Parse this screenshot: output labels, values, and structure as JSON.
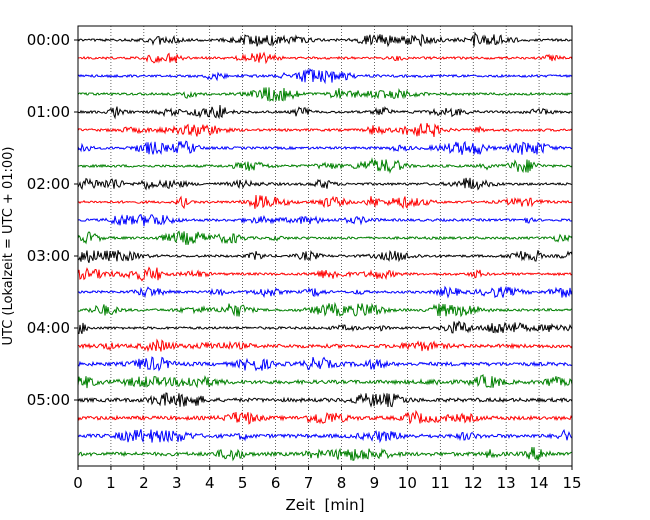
{
  "chart_data": {
    "type": "line",
    "subtype": "helicorder",
    "title": "",
    "xlabel": "Zeit  [min]",
    "ylabel": "UTC (Lokalzeit = UTC + 01:00)",
    "xlim": [
      0,
      15
    ],
    "x_ticks": [
      0,
      1,
      2,
      3,
      4,
      5,
      6,
      7,
      8,
      9,
      10,
      11,
      12,
      13,
      14,
      15
    ],
    "y_tick_labels": [
      "00:00",
      "01:00",
      "02:00",
      "03:00",
      "04:00",
      "05:00"
    ],
    "rows_per_hour": 4,
    "row_minutes": 15,
    "row_count": 24,
    "grid": "vertical-dotted",
    "colors_cycle": [
      "#000000",
      "#ff0000",
      "#0000ff",
      "#008000"
    ]
  }
}
